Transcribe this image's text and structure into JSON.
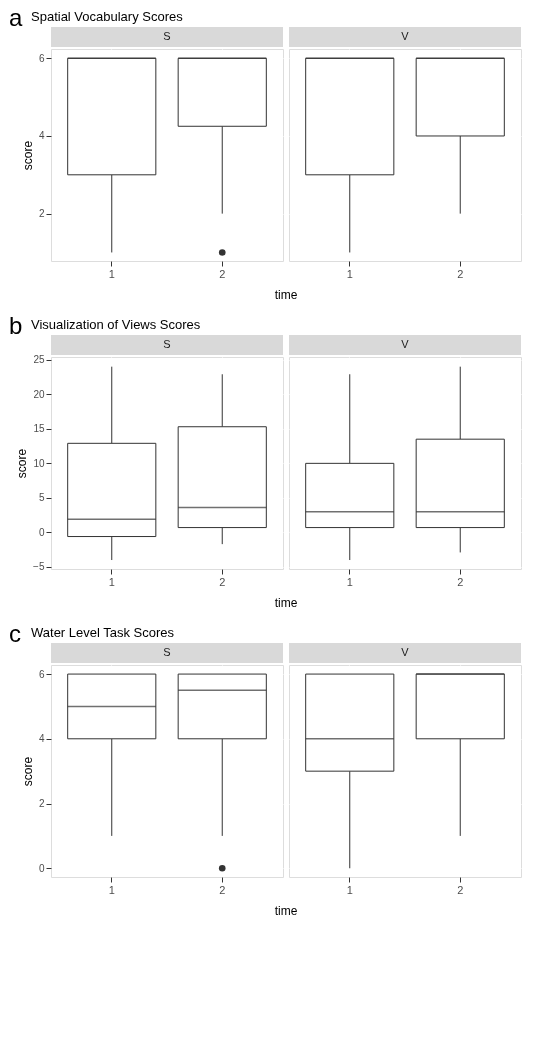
{
  "chart_data": [
    {
      "type": "box",
      "title": "Spatial Vocabulary Scores",
      "annotations": [
        "a"
      ],
      "xlabel": "time",
      "ylabel": "score",
      "categories": [
        "1",
        "2"
      ],
      "ylim": [
        0.78,
        6.24
      ],
      "yticks": [
        2,
        4,
        6
      ],
      "grid": true,
      "series": [
        {
          "name": "S",
          "color": "#333333",
          "boxes": [
            {
              "low": 1,
              "q1": 3,
              "median": 6,
              "q3": 6,
              "high": 6
            },
            {
              "low": 2,
              "q1": 4.25,
              "median": 6,
              "q3": 6,
              "high": 6,
              "outliers": [
                1
              ]
            }
          ]
        }
      ]
    },
    {
      "type": "box",
      "categories": [
        "1",
        "2"
      ],
      "ylim": [
        0.78,
        6.24
      ],
      "yticks": [
        2,
        4,
        6
      ],
      "grid": true,
      "tick_labels": "x",
      "series": [
        {
          "name": "V",
          "color": "#333333",
          "boxes": [
            {
              "low": 1,
              "q1": 3,
              "median": 6,
              "q3": 6,
              "high": 6
            },
            {
              "low": 2,
              "q1": 4,
              "median": 6,
              "q3": 6,
              "high": 6
            }
          ]
        }
      ]
    },
    {
      "type": "box",
      "title": "Visualization of Views Scores",
      "annotations": [
        "b"
      ],
      "xlabel": "time",
      "ylabel": "score",
      "categories": [
        "1",
        "2"
      ],
      "ylim": [
        -5.3,
        25.4
      ],
      "yticks": [
        -5,
        0,
        5,
        10,
        15,
        20,
        25
      ],
      "grid": true,
      "series": [
        {
          "name": "S",
          "color": "#333333",
          "boxes": [
            {
              "low": -4,
              "q1": -0.6,
              "median": 1.9,
              "q3": 12.9,
              "high": 24
            },
            {
              "low": -1.7,
              "q1": 0.7,
              "median": 3.6,
              "q3": 15.3,
              "high": 22.9
            }
          ]
        }
      ]
    },
    {
      "type": "box",
      "categories": [
        "1",
        "2"
      ],
      "ylim": [
        -5.3,
        25.4
      ],
      "yticks": [
        -5,
        0,
        5,
        10,
        15,
        20,
        25
      ],
      "grid": true,
      "tick_labels": "x",
      "series": [
        {
          "name": "V",
          "color": "#333333",
          "boxes": [
            {
              "low": -4,
              "q1": 0.7,
              "median": 3,
              "q3": 10,
              "high": 22.9
            },
            {
              "low": -2.9,
              "q1": 0.7,
              "median": 3,
              "q3": 13.5,
              "high": 24
            }
          ]
        }
      ]
    },
    {
      "type": "box",
      "title": "Water Level Task Scores",
      "annotations": [
        "c"
      ],
      "xlabel": "time",
      "ylabel": "score",
      "categories": [
        "1",
        "2"
      ],
      "ylim": [
        -0.27,
        6.28
      ],
      "yticks": [
        0,
        2,
        4,
        6
      ],
      "grid": true,
      "series": [
        {
          "name": "S",
          "color": "#333333",
          "boxes": [
            {
              "low": 1,
              "q1": 4,
              "median": 5,
              "q3": 6,
              "high": 6
            },
            {
              "low": 1,
              "q1": 4,
              "median": 5.5,
              "q3": 6,
              "high": 6,
              "outliers": [
                0
              ]
            }
          ]
        }
      ]
    },
    {
      "type": "box",
      "categories": [
        "1",
        "2"
      ],
      "ylim": [
        -0.27,
        6.28
      ],
      "yticks": [
        0,
        2,
        4,
        6
      ],
      "grid": true,
      "tick_labels": "x",
      "series": [
        {
          "name": "V",
          "color": "#333333",
          "boxes": [
            {
              "low": 0,
              "q1": 3,
              "median": 4,
              "q3": 6,
              "high": 6
            },
            {
              "low": 1,
              "q1": 4,
              "median": 6,
              "q3": 6,
              "high": 6
            }
          ]
        }
      ]
    }
  ]
}
